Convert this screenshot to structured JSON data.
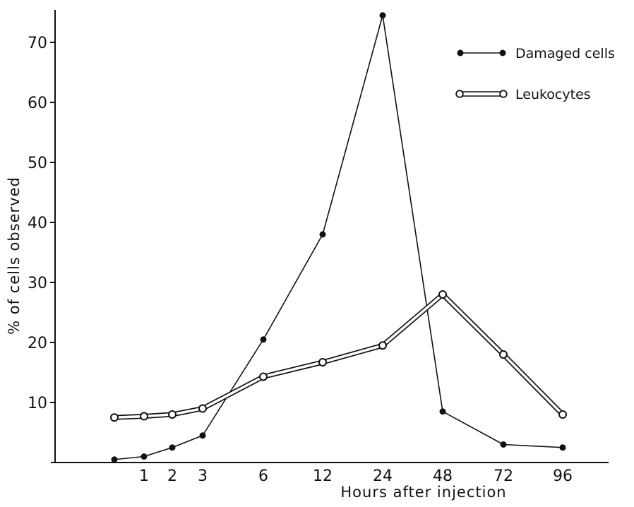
{
  "chart_data": {
    "type": "line",
    "xlabel": "Hours after injection",
    "ylabel": "% of cells observed",
    "categories": [
      "",
      "1",
      "2",
      "3",
      "6",
      "12",
      "24",
      "48",
      "72",
      "96"
    ],
    "y_ticks": [
      "10",
      "20",
      "30",
      "40",
      "50",
      "60",
      "70"
    ],
    "ylim": [
      0,
      76
    ],
    "grid": false,
    "legend_position": "top-right",
    "series": [
      {
        "name": "Damaged cells",
        "marker": "filled-circle",
        "line": "single",
        "color": "#111111",
        "values": [
          0.5,
          1.0,
          2.5,
          4.5,
          20.5,
          38.0,
          74.5,
          8.5,
          3.0,
          2.5
        ]
      },
      {
        "name": "Leukocytes",
        "marker": "open-circle",
        "line": "double",
        "color": "#111111",
        "values": [
          7.5,
          7.7,
          8.0,
          9.0,
          14.3,
          16.7,
          19.5,
          28.0,
          18.0,
          8.0
        ]
      }
    ]
  }
}
